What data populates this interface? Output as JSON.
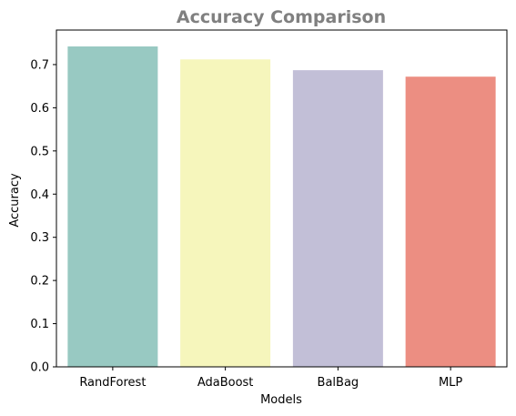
{
  "chart_data": {
    "type": "bar",
    "title": "Accuracy Comparison",
    "xlabel": "Models",
    "ylabel": "Accuracy",
    "categories": [
      "RandForest",
      "AdaBoost",
      "BalBag",
      "MLP"
    ],
    "values": [
      0.742,
      0.712,
      0.687,
      0.672
    ],
    "colors": [
      "#98c9c2",
      "#f6f6bc",
      "#c2bfd7",
      "#ec8e82"
    ],
    "ylim": [
      0,
      0.78
    ],
    "yticks": [
      "0.0",
      "0.1",
      "0.2",
      "0.3",
      "0.4",
      "0.5",
      "0.6",
      "0.7"
    ],
    "grid": false,
    "legend": "none"
  }
}
